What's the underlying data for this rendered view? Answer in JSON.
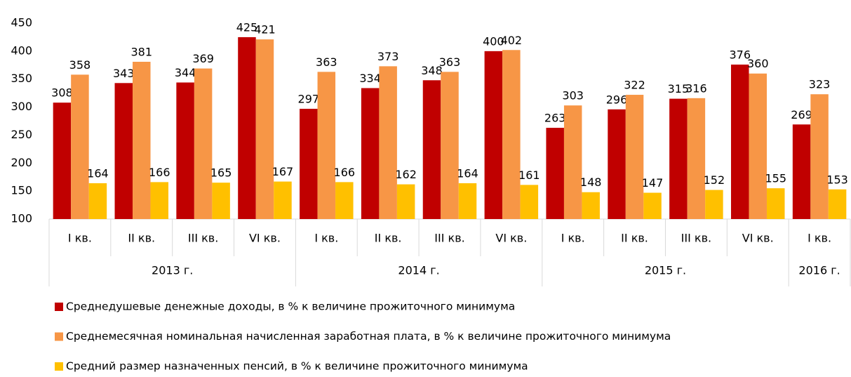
{
  "chart_data": {
    "type": "bar",
    "groups": [
      {
        "name": "2013 г.",
        "categories": [
          "I кв.",
          "II кв.",
          "III кв.",
          "VI кв."
        ]
      },
      {
        "name": "2014 г.",
        "categories": [
          "I кв.",
          "II кв.",
          "III кв.",
          "VI кв."
        ]
      },
      {
        "name": "2015 г.",
        "categories": [
          "I кв.",
          "II кв.",
          "III кв.",
          "VI кв."
        ]
      },
      {
        "name": "2016 г.",
        "categories": [
          "I кв."
        ]
      }
    ],
    "series": [
      {
        "name": "Среднедушевые денежные доходы, в % к величине прожиточного минимума",
        "color": "#c00000",
        "values": [
          308,
          343,
          344,
          425,
          297,
          334,
          348,
          400,
          263,
          296,
          315,
          376,
          269
        ]
      },
      {
        "name": "Среднемесячная номинальная начисленная заработная плата, в % к величине прожиточного минимума",
        "color": "#f79646",
        "values": [
          358,
          381,
          369,
          421,
          363,
          373,
          363,
          402,
          303,
          322,
          316,
          360,
          323
        ]
      },
      {
        "name": "Средний размер назначенных пенсий, в % к величине прожиточного минимума",
        "color": "#ffc000",
        "values": [
          164,
          166,
          165,
          167,
          166,
          162,
          164,
          161,
          148,
          147,
          152,
          155,
          153
        ]
      }
    ],
    "ylim": [
      100,
      450
    ],
    "yticks": [
      100,
      150,
      200,
      250,
      300,
      350,
      400,
      450
    ],
    "grid": false,
    "legend": "bottom"
  }
}
